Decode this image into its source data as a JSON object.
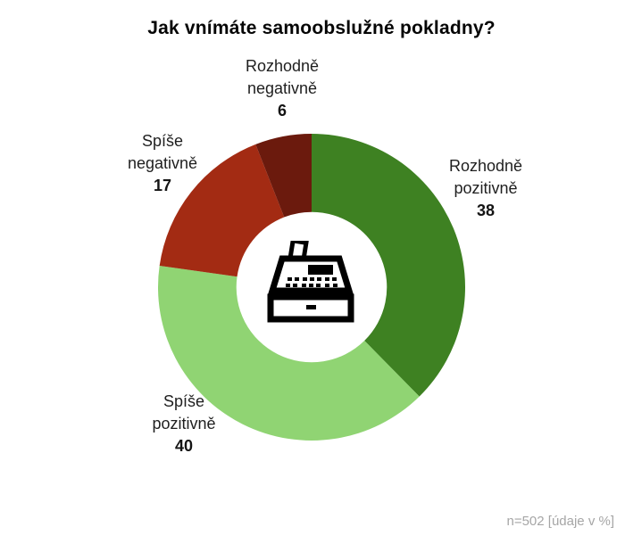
{
  "title": "Jak vnímáte samoobslužné pokladny?",
  "footer_note": "n=502 [údaje v %]",
  "chart_data": {
    "type": "pie",
    "subtype": "donut",
    "title": "Jak vnímáte samoobslužné pokladny?",
    "categories": [
      "Rozhodně pozitivně",
      "Spíše pozitivně",
      "Spíše negativně",
      "Rozhodně negativně"
    ],
    "values": [
      38,
      40,
      17,
      6
    ],
    "unit": "%",
    "sample_note": "n=502 [údaje v %]",
    "start_angle_deg": 0,
    "direction": "clockwise",
    "inner_radius_ratio": 0.49,
    "center_icon": "cash-register-icon",
    "legend_position": "labels-outside",
    "segments": [
      {
        "name": "Rozhodně pozitivně",
        "value": 38,
        "color": "#3E8122",
        "label_lines": [
          "Rozhodně",
          "pozitivně"
        ]
      },
      {
        "name": "Spíše pozitivně",
        "value": 40,
        "color": "#90D473",
        "label_lines": [
          "Spíše",
          "pozitivně"
        ]
      },
      {
        "name": "Spíše negativně",
        "value": 17,
        "color": "#A32B13",
        "label_lines": [
          "Spíše",
          "negativně"
        ]
      },
      {
        "name": "Rozhodně negativně",
        "value": 6,
        "color": "#6B1A0D",
        "label_lines": [
          "Rozhodně",
          "negativně"
        ]
      }
    ],
    "colors": {
      "icon": "#000000",
      "title_text": "#050505",
      "label_text": "#1f1f1f",
      "note_text": "#a6a6a6"
    }
  }
}
